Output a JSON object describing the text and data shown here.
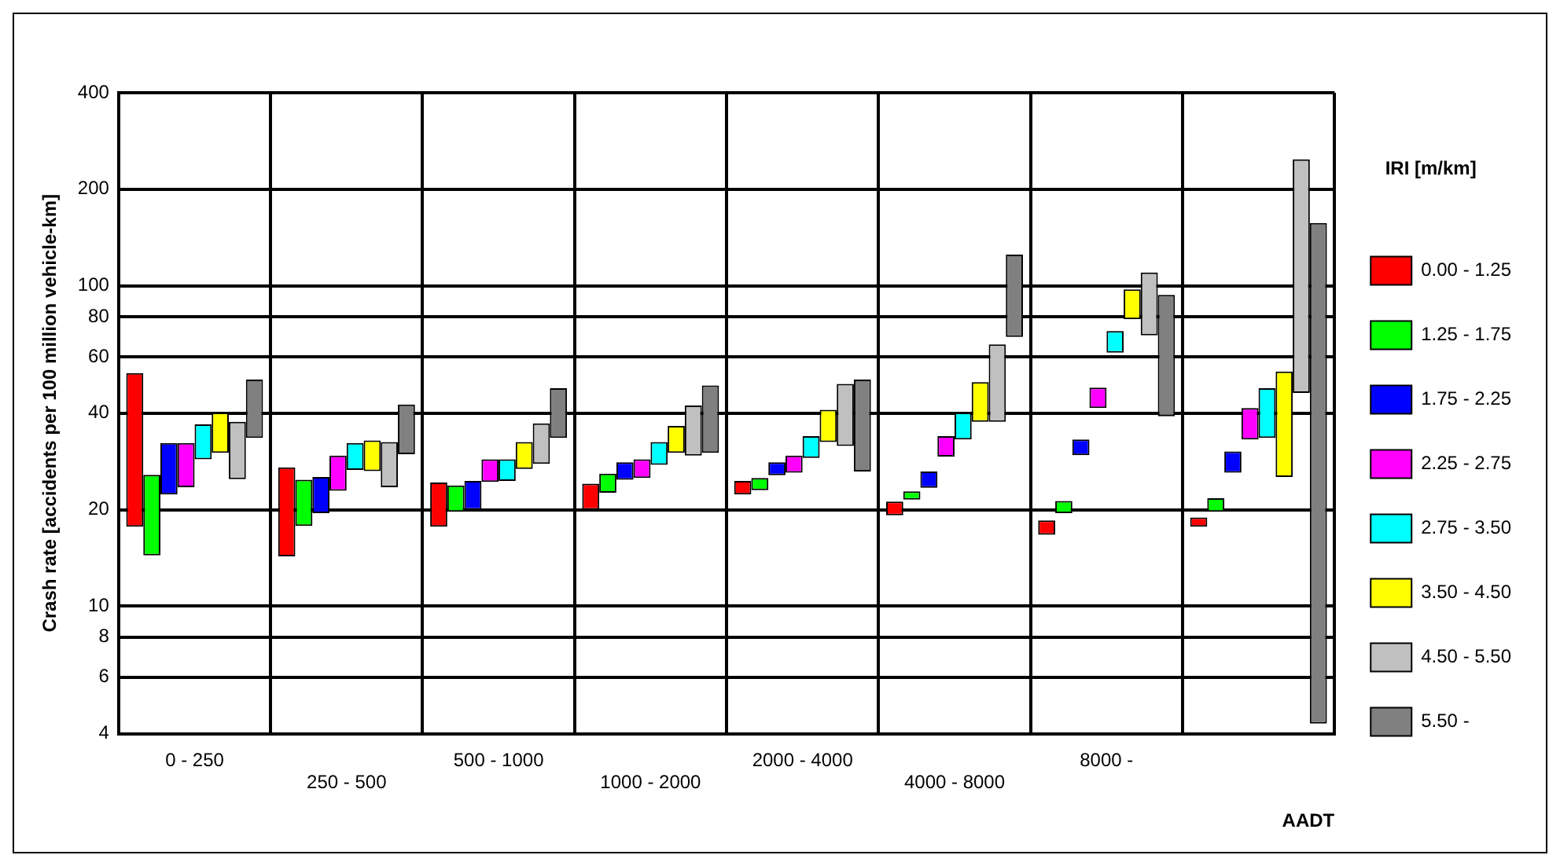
{
  "chart_data": {
    "type": "bar",
    "xlabel": "AADT",
    "ylabel": "Crash rate [accidents per 100 million vehicle-km]",
    "legend_title": "IRI [m/km]",
    "legend": "right",
    "grid": true,
    "log": "y",
    "categories": [
      "0 - 250",
      "250 - 500",
      "500 - 1000",
      "1000 - 2000",
      "2000 - 4000",
      "4000 - 8000",
      "8000 -",
      null
    ],
    "ylim": [
      4,
      400
    ],
    "yticks": [
      4,
      6,
      8,
      10,
      20,
      40,
      60,
      80,
      100,
      200,
      400
    ],
    "series": [
      {
        "name": "0.00 - 1.25",
        "color": "#ff0000",
        "base": [
          17.7,
          14.3,
          17.7,
          20,
          22.3,
          19.2,
          16.7,
          17.7
        ],
        "values": [
          35.7,
          12.8,
          6.6,
          4.1,
          2.3,
          2.0,
          1.8,
          1.2
        ]
      },
      {
        "name": "1.25 - 1.75",
        "color": "#00ff00",
        "base": [
          14.4,
          17.8,
          19.7,
          22.6,
          23,
          21.5,
          19.5,
          19.7
        ],
        "values": [
          11.3,
          7,
          4.1,
          3.3,
          2.1,
          1.3,
          1.8,
          2
        ]
      },
      {
        "name": "1.75 - 2.25",
        "color": "#0000ff",
        "base": [
          22.3,
          19.5,
          20,
          24.8,
          25.6,
          23.4,
          29.6,
          26.1
        ],
        "values": [
          10,
          5.8,
          4.6,
          3.3,
          2.5,
          2.9,
          3.5,
          4.3
        ]
      },
      {
        "name": "2.25 - 2.75",
        "color": "#ff00ff",
        "base": [
          23.5,
          22.9,
          24.4,
          25.1,
          26.1,
          29.3,
          41.5,
          33.1
        ],
        "values": [
          8.8,
          6.6,
          4.3,
          3.6,
          3.4,
          4.6,
          6.6,
          8.4
        ]
      },
      {
        "name": "2.75 - 3.50",
        "color": "#00ffff",
        "base": [
          28.7,
          26.6,
          24.6,
          27.6,
          29,
          33.1,
          61.8,
          33.5
        ],
        "values": [
          8.2,
          5.7,
          4.1,
          4.9,
          4.9,
          7.1,
          10.4,
          14.4
        ]
      },
      {
        "name": "3.50 - 4.50",
        "color": "#ffff00",
        "base": [
          30.1,
          26.4,
          26.8,
          30.1,
          32.5,
          37.6,
          78.6,
          25.3
        ],
        "values": [
          10.1,
          6.5,
          5.7,
          6.4,
          8.5,
          12.4,
          18.8,
          28.7
        ]
      },
      {
        "name": "4.50 - 5.50",
        "color": "#c0c0c0",
        "base": [
          24.9,
          23.5,
          27.8,
          29.5,
          31.6,
          37.6,
          70,
          46.3
        ],
        "values": [
          12.7,
          9,
          9.4,
          12.8,
          17.8,
          28,
          40,
          201.7
        ]
      },
      {
        "name": "5.50 -",
        "color": "#808080",
        "base": [
          33.5,
          29.8,
          33.5,
          30.1,
          26.3,
          69.2,
          39.1,
          4.3
        ],
        "values": [
          17.4,
          12.8,
          14.4,
          18.7,
          24.6,
          55.8,
          54.5,
          152.7
        ]
      }
    ]
  }
}
